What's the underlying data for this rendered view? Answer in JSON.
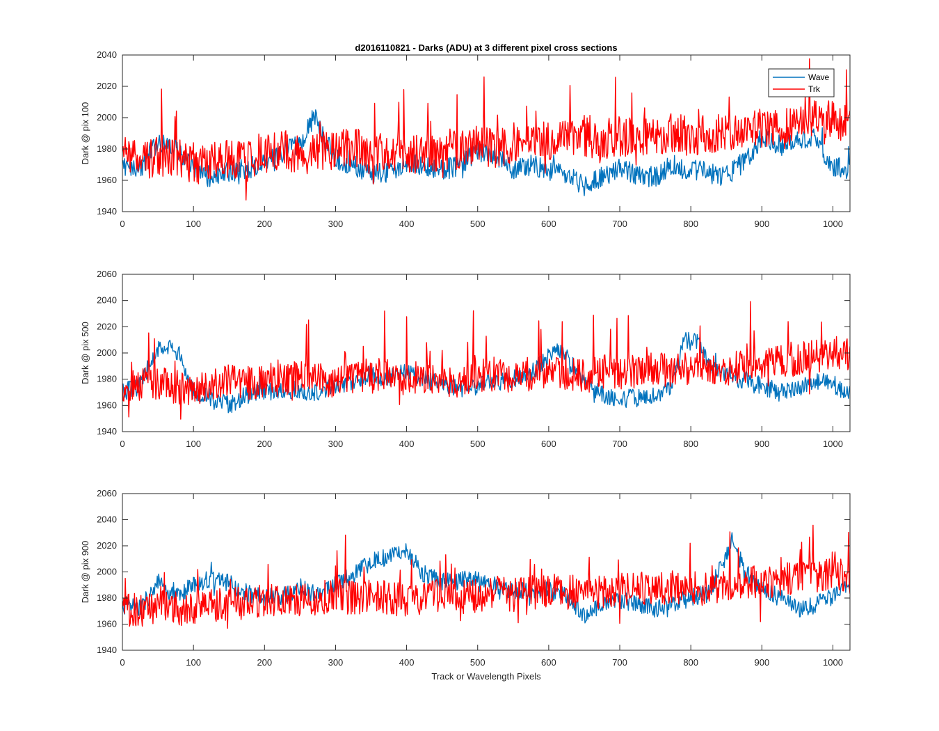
{
  "figure": {
    "title": "d2016110821 - Darks (ADU) at 3 different pixel cross sections",
    "xlabel": "Track or Wavelength Pixels"
  },
  "chart_data": [
    {
      "type": "line",
      "title": "d2016110821 - Darks (ADU) at 3 different pixel cross sections",
      "xlabel": "",
      "ylabel": "Dark @ pix 100",
      "xlim": [
        0,
        1024
      ],
      "ylim": [
        1940,
        2040
      ],
      "xticks": [
        0,
        100,
        200,
        300,
        400,
        500,
        600,
        700,
        800,
        900,
        1000
      ],
      "yticks": [
        1940,
        1960,
        1980,
        2000,
        2020,
        2040
      ],
      "grid": false,
      "legend": {
        "show": true,
        "placement": "top-right",
        "entries": [
          "Wave",
          "Trk"
        ]
      },
      "series": [
        {
          "name": "Wave",
          "color": "#0072BD",
          "x": [
            0,
            25,
            50,
            75,
            100,
            125,
            150,
            175,
            200,
            225,
            250,
            270,
            285,
            300,
            325,
            350,
            375,
            400,
            425,
            450,
            475,
            500,
            525,
            550,
            575,
            600,
            625,
            650,
            675,
            700,
            725,
            750,
            775,
            800,
            825,
            850,
            875,
            900,
            925,
            950,
            975,
            1000,
            1024
          ],
          "y": [
            1970,
            1968,
            1985,
            1982,
            1966,
            1962,
            1965,
            1968,
            1970,
            1978,
            1982,
            2002,
            1985,
            1974,
            1970,
            1963,
            1966,
            1972,
            1970,
            1966,
            1970,
            1978,
            1976,
            1966,
            1970,
            1966,
            1962,
            1958,
            1962,
            1968,
            1963,
            1962,
            1970,
            1966,
            1966,
            1962,
            1972,
            1988,
            1982,
            1988,
            1986,
            1968,
            1968
          ]
        },
        {
          "name": "Trk",
          "color": "#FF0000",
          "x": [
            0,
            25,
            50,
            75,
            100,
            125,
            150,
            175,
            200,
            225,
            250,
            275,
            300,
            325,
            350,
            375,
            400,
            425,
            450,
            475,
            500,
            525,
            550,
            575,
            600,
            625,
            650,
            675,
            700,
            725,
            750,
            775,
            800,
            825,
            850,
            875,
            900,
            925,
            950,
            975,
            1000,
            1024
          ],
          "y": [
            1975,
            1972,
            1976,
            1974,
            1970,
            1972,
            1974,
            1972,
            1978,
            1980,
            1976,
            1978,
            1980,
            1982,
            1976,
            1980,
            1978,
            1976,
            1980,
            1978,
            1982,
            1980,
            1984,
            1986,
            1984,
            1986,
            1988,
            1986,
            1988,
            1986,
            1988,
            1990,
            1988,
            1990,
            1992,
            1992,
            1994,
            1994,
            1996,
            1998,
            1998,
            1996
          ]
        }
      ]
    },
    {
      "type": "line",
      "title": "",
      "xlabel": "",
      "ylabel": "Dark @ pix 500",
      "xlim": [
        0,
        1024
      ],
      "ylim": [
        1940,
        2060
      ],
      "xticks": [
        0,
        100,
        200,
        300,
        400,
        500,
        600,
        700,
        800,
        900,
        1000
      ],
      "yticks": [
        1940,
        1960,
        1980,
        2000,
        2020,
        2040,
        2060
      ],
      "grid": false,
      "legend": {
        "show": false
      },
      "series": [
        {
          "name": "Wave",
          "color": "#0072BD",
          "x": [
            0,
            25,
            40,
            60,
            80,
            100,
            125,
            150,
            175,
            200,
            225,
            250,
            275,
            300,
            325,
            350,
            375,
            400,
            425,
            450,
            475,
            500,
            525,
            550,
            575,
            600,
            620,
            650,
            675,
            700,
            725,
            750,
            775,
            790,
            810,
            825,
            850,
            875,
            900,
            925,
            950,
            975,
            1000,
            1024
          ],
          "y": [
            1970,
            1975,
            1995,
            2008,
            1998,
            1970,
            1966,
            1960,
            1968,
            1970,
            1972,
            1972,
            1970,
            1976,
            1978,
            1984,
            1980,
            1986,
            1980,
            1976,
            1972,
            1975,
            1978,
            1980,
            1984,
            1998,
            2002,
            1978,
            1968,
            1964,
            1966,
            1968,
            1976,
            2010,
            2008,
            1990,
            1984,
            1978,
            1975,
            1970,
            1974,
            1978,
            1976,
            1970
          ]
        },
        {
          "name": "Trk",
          "color": "#FF0000",
          "x": [
            0,
            25,
            50,
            75,
            100,
            125,
            150,
            175,
            200,
            225,
            250,
            275,
            300,
            325,
            350,
            375,
            400,
            425,
            450,
            475,
            500,
            525,
            550,
            575,
            600,
            625,
            650,
            675,
            700,
            725,
            750,
            775,
            800,
            825,
            850,
            875,
            900,
            925,
            950,
            975,
            1000,
            1024
          ],
          "y": [
            1972,
            1975,
            1978,
            1974,
            1972,
            1976,
            1978,
            1976,
            1978,
            1980,
            1982,
            1980,
            1978,
            1982,
            1984,
            1982,
            1980,
            1982,
            1980,
            1978,
            1982,
            1984,
            1982,
            1984,
            1986,
            1984,
            1982,
            1986,
            1984,
            1986,
            1988,
            1986,
            1988,
            1990,
            1988,
            1990,
            1992,
            1994,
            1996,
            1998,
            2000,
            1998
          ]
        }
      ]
    },
    {
      "type": "line",
      "title": "",
      "xlabel": "Track or Wavelength Pixels",
      "ylabel": "Dark @ pix 900",
      "xlim": [
        0,
        1024
      ],
      "ylim": [
        1940,
        2060
      ],
      "xticks": [
        0,
        100,
        200,
        300,
        400,
        500,
        600,
        700,
        800,
        900,
        1000
      ],
      "yticks": [
        1940,
        1960,
        1980,
        2000,
        2020,
        2040,
        2060
      ],
      "grid": false,
      "legend": {
        "show": false
      },
      "series": [
        {
          "name": "Wave",
          "color": "#0072BD",
          "x": [
            0,
            25,
            50,
            75,
            100,
            125,
            150,
            175,
            200,
            225,
            250,
            275,
            300,
            325,
            350,
            375,
            395,
            425,
            450,
            475,
            500,
            525,
            550,
            575,
            600,
            625,
            650,
            675,
            700,
            725,
            750,
            775,
            800,
            825,
            845,
            860,
            875,
            900,
            925,
            950,
            975,
            1000,
            1024
          ],
          "y": [
            1975,
            1972,
            1992,
            1980,
            1990,
            1995,
            1992,
            1984,
            1980,
            1982,
            1988,
            1982,
            1990,
            1998,
            2008,
            2012,
            2018,
            1998,
            1992,
            1994,
            1996,
            1990,
            1986,
            1984,
            1986,
            1982,
            1966,
            1974,
            1978,
            1976,
            1972,
            1976,
            1980,
            1984,
            2006,
            2026,
            2000,
            1988,
            1980,
            1972,
            1974,
            1982,
            1988
          ]
        },
        {
          "name": "Trk",
          "color": "#FF0000",
          "x": [
            0,
            25,
            50,
            75,
            100,
            125,
            150,
            175,
            200,
            225,
            250,
            275,
            300,
            325,
            350,
            375,
            400,
            425,
            450,
            475,
            500,
            525,
            550,
            575,
            600,
            625,
            650,
            675,
            700,
            725,
            750,
            775,
            800,
            825,
            850,
            875,
            900,
            925,
            950,
            975,
            1000,
            1024
          ],
          "y": [
            1972,
            1970,
            1974,
            1972,
            1972,
            1974,
            1976,
            1976,
            1978,
            1980,
            1978,
            1980,
            1982,
            1980,
            1982,
            1980,
            1978,
            1980,
            1982,
            1980,
            1982,
            1984,
            1982,
            1984,
            1986,
            1984,
            1986,
            1984,
            1986,
            1988,
            1986,
            1988,
            1986,
            1988,
            1990,
            1992,
            1992,
            1994,
            1996,
            1996,
            1998,
            1996
          ]
        }
      ]
    }
  ]
}
